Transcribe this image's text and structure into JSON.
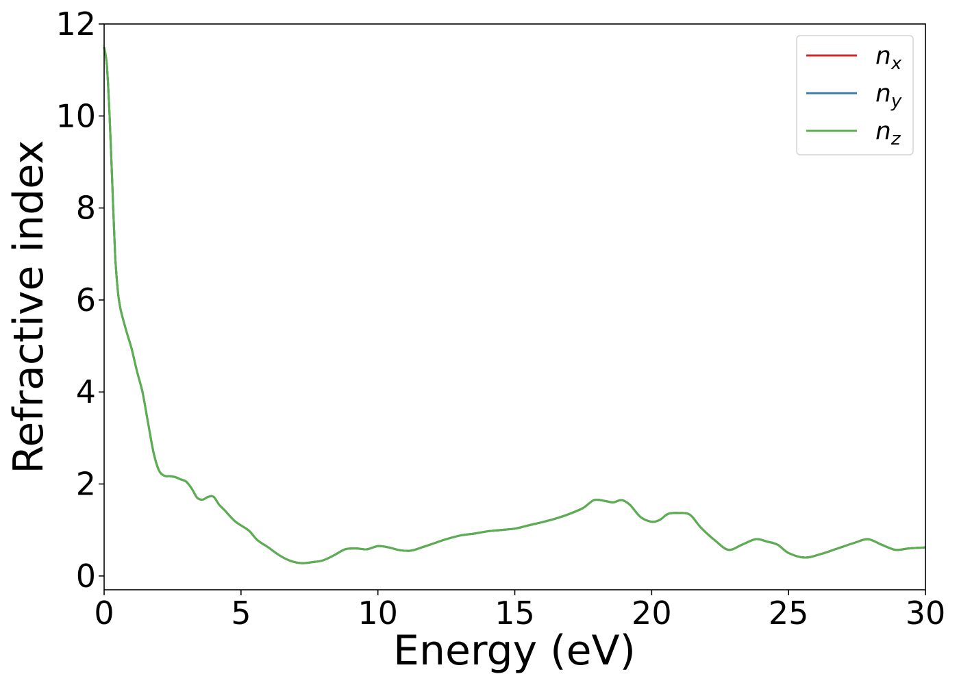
{
  "chart_data": {
    "type": "line",
    "title": "",
    "xlabel": "Energy (eV)",
    "ylabel": "Refractive index",
    "xlim": [
      0,
      30
    ],
    "ylim": [
      -0.3,
      12.0
    ],
    "xticks": [
      0,
      5,
      10,
      15,
      20,
      25,
      30
    ],
    "yticks": [
      0,
      2,
      4,
      6,
      8,
      10,
      12
    ],
    "grid": false,
    "legend_position": "top-right",
    "series": [
      {
        "name": "n",
        "subscript": "x",
        "color": "#d62728"
      },
      {
        "name": "n",
        "subscript": "y",
        "color": "#3b7dab"
      },
      {
        "name": "n",
        "subscript": "z",
        "color": "#5ab04f"
      }
    ],
    "x": [
      0.0,
      0.1,
      0.2,
      0.3,
      0.4,
      0.5,
      0.6,
      0.8,
      1.0,
      1.2,
      1.4,
      1.6,
      1.8,
      2.0,
      2.2,
      2.4,
      2.6,
      2.8,
      3.0,
      3.2,
      3.4,
      3.6,
      3.8,
      4.0,
      4.2,
      4.4,
      4.6,
      4.8,
      5.0,
      5.3,
      5.6,
      6.0,
      6.4,
      6.8,
      7.2,
      7.6,
      8.0,
      8.4,
      8.8,
      9.2,
      9.6,
      10.0,
      10.4,
      10.8,
      11.2,
      11.6,
      12.0,
      12.5,
      13.0,
      13.5,
      14.0,
      14.5,
      15.0,
      15.5,
      16.0,
      16.5,
      17.0,
      17.5,
      17.9,
      18.3,
      18.6,
      18.9,
      19.2,
      19.6,
      20.0,
      20.3,
      20.6,
      21.0,
      21.4,
      21.8,
      22.3,
      22.8,
      23.3,
      23.8,
      24.2,
      24.6,
      25.0,
      25.6,
      26.2,
      26.8,
      27.4,
      27.9,
      28.4,
      28.9,
      29.4,
      30.0
    ],
    "y": [
      11.5,
      11.1,
      10.0,
      8.5,
      7.0,
      6.2,
      5.8,
      5.35,
      4.95,
      4.45,
      4.0,
      3.35,
      2.7,
      2.3,
      2.18,
      2.17,
      2.15,
      2.1,
      2.05,
      1.9,
      1.7,
      1.66,
      1.72,
      1.72,
      1.55,
      1.43,
      1.3,
      1.18,
      1.1,
      0.98,
      0.78,
      0.62,
      0.45,
      0.33,
      0.28,
      0.3,
      0.34,
      0.45,
      0.58,
      0.6,
      0.58,
      0.65,
      0.62,
      0.56,
      0.55,
      0.62,
      0.7,
      0.8,
      0.88,
      0.92,
      0.97,
      1.0,
      1.03,
      1.1,
      1.17,
      1.25,
      1.35,
      1.48,
      1.65,
      1.63,
      1.6,
      1.65,
      1.55,
      1.28,
      1.18,
      1.22,
      1.35,
      1.37,
      1.33,
      1.05,
      0.78,
      0.57,
      0.68,
      0.8,
      0.75,
      0.68,
      0.5,
      0.4,
      0.48,
      0.6,
      0.72,
      0.8,
      0.68,
      0.57,
      0.6,
      0.62
    ]
  }
}
